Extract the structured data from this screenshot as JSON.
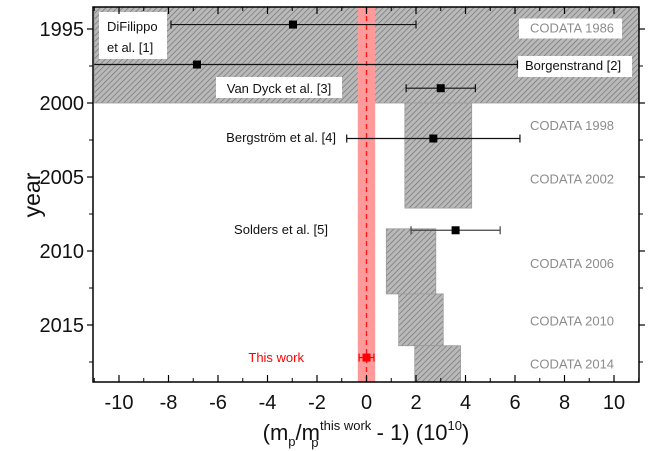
{
  "chart_data": {
    "type": "scatter",
    "title": "",
    "xlabel": "(m_p/m_p^this work - 1) (10^10)",
    "xlabel_parts": {
      "open": "(m",
      "sub1": "p",
      "slash": "/m",
      "sup": "this work",
      "sub2": "p",
      "rest": " - 1) (10",
      "exp": "10",
      "close": ")"
    },
    "ylabel": "year",
    "xlim": [
      -11,
      11
    ],
    "ylim": [
      2018.85,
      1993.5
    ],
    "x_ticks": [
      -10,
      -8,
      -6,
      -4,
      -2,
      0,
      2,
      4,
      6,
      8,
      10
    ],
    "x_tick_labels": [
      "-10",
      "-8",
      "-6",
      "-4",
      "-2",
      "0",
      "2",
      "4",
      "6",
      "8",
      "10"
    ],
    "y_ticks": [
      1995,
      2000,
      2005,
      2010,
      2015
    ],
    "y_tick_labels": [
      "1995",
      "2000",
      "2005",
      "2010",
      "2015"
    ],
    "grid": false,
    "measurements": [
      {
        "name": "DiFilippo et al. [1]",
        "label_lines": [
          "DiFilippo",
          "et al. [1]"
        ],
        "year": 1994.7,
        "x": -2.97,
        "xerr_low": -7.9,
        "xerr_high": 2.0,
        "color": "#000000"
      },
      {
        "name": "Borgenstrand [2]",
        "label_lines": [
          "Borgenstrand [2]"
        ],
        "year": 1997.4,
        "x": -6.85,
        "xerr_low": -11.0,
        "xerr_high": 6.1,
        "color": "#000000"
      },
      {
        "name": "Van Dyck et al. [3]",
        "label_lines": [
          "Van Dyck et al. [3]"
        ],
        "year": 1999.0,
        "x": 3.0,
        "xerr_low": 1.6,
        "xerr_high": 4.4,
        "color": "#000000"
      },
      {
        "name": "Bergström et al. [4]",
        "label_lines": [
          "Bergström et al. [4]"
        ],
        "year": 2002.4,
        "x": 2.7,
        "xerr_low": -0.8,
        "xerr_high": 6.2,
        "color": "#000000"
      },
      {
        "name": "Solders et al. [5]",
        "label_lines": [
          "Solders et al. [5]"
        ],
        "year": 2008.6,
        "x": 3.6,
        "xerr_low": 1.8,
        "xerr_high": 5.4,
        "color": "#000000"
      },
      {
        "name": "This work",
        "label_lines": [
          "This work"
        ],
        "year": 2017.2,
        "x": 0.0,
        "xerr_low": -0.3,
        "xerr_high": 0.3,
        "color": "#ff0000"
      }
    ],
    "codata_bands": [
      {
        "name": "CODATA 1986",
        "x_low": -11.0,
        "x_high": 11.0,
        "year_start": 1993.5,
        "year_end": 2000.0
      },
      {
        "name": "CODATA 1998",
        "x_low": 1.55,
        "x_high": 4.25,
        "year_start": 2000.0,
        "year_end": 2007.1
      },
      {
        "name": "CODATA 2002",
        "x_low": 1.55,
        "x_high": 4.25,
        "year_start": 2000.0,
        "year_end": 2007.1
      },
      {
        "name": "CODATA 2006",
        "x_low": 0.8,
        "x_high": 2.8,
        "year_start": 2008.5,
        "year_end": 2012.9
      },
      {
        "name": "CODATA 2010",
        "x_low": 1.3,
        "x_high": 3.1,
        "year_start": 2012.9,
        "year_end": 2016.4
      },
      {
        "name": "CODATA 2014",
        "x_low": 1.95,
        "x_high": 3.8,
        "year_start": 2016.4,
        "year_end": 2018.85
      }
    ],
    "codata_labels": [
      {
        "text": "CODATA 1986",
        "year": 1994.9
      },
      {
        "text": "CODATA 1998",
        "year": 2001.5
      },
      {
        "text": "CODATA 2002",
        "year": 2005.1
      },
      {
        "text": "CODATA 2006",
        "year": 2010.8
      },
      {
        "text": "CODATA 2010",
        "year": 2014.7
      },
      {
        "text": "CODATA 2014",
        "year": 2017.6
      }
    ],
    "this_work_band": {
      "x_low": -0.35,
      "x_high": 0.35,
      "color": "#ff9a9a"
    },
    "colors": {
      "band_fill": "#b4b4b4",
      "hatch": "#6a6a6a",
      "codata_text": "#8c8c8c",
      "this_work": "#ff0000"
    }
  }
}
